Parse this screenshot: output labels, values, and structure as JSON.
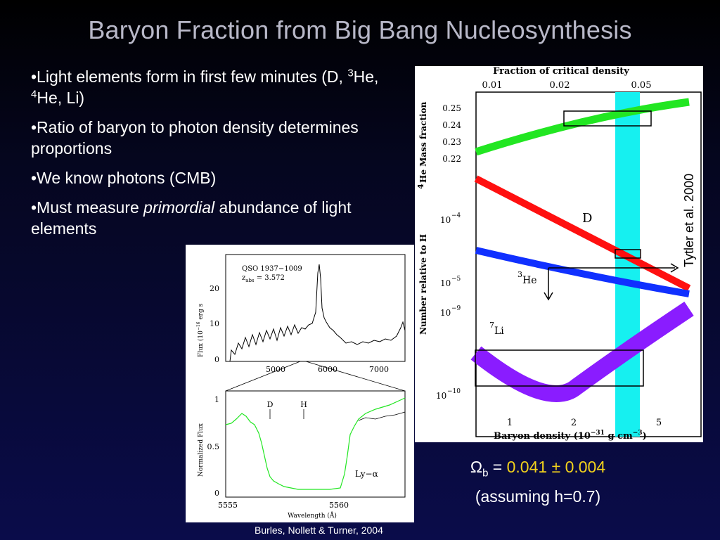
{
  "slide": {
    "title": "Baryon Fraction from Big Bang Nucleosynthesis",
    "bullets": [
      {
        "pre": "•Light elements form in first few minutes (D, ",
        "sup1": "3",
        "mid1": "He, ",
        "sup2": "4",
        "post": "He, Li)"
      },
      {
        "text": "•Ratio of baryon to photon density determines proportions"
      },
      {
        "text": "•We know photons (CMB)"
      },
      {
        "pre": "•Must measure ",
        "em": "primordial",
        "post": " abundance of light elements"
      }
    ],
    "omega": {
      "symbol": "Ω",
      "sub": "b",
      "eq": " = ",
      "value": "0.041 ± 0.004",
      "note": "(assuming h=0.7)"
    },
    "caption_right": "Tytler et al. 2000",
    "caption_left": "Burles, Nollett & Turner, 2004"
  },
  "colors": {
    "helium": "#22e622",
    "deuterium": "#ff1010",
    "he3": "#1030ff",
    "li7": "#8a1cff",
    "band": "#16f0f0"
  },
  "right_plot": {
    "top_axis_title": "Fraction of critical density",
    "top_ticks": [
      "0.01",
      "0.02",
      "0.05"
    ],
    "he_label": "He Mass fraction",
    "he_sup": "4",
    "he_ticks": [
      "0.25",
      "0.24",
      "0.23",
      "0.22"
    ],
    "y_label": "Number relative to H",
    "y_ticks": [
      "10",
      "10",
      "10",
      "10"
    ],
    "y_tick_exps": [
      "−4",
      "−5",
      "−9",
      "−10"
    ],
    "x_ticks": [
      "1",
      "2",
      "5"
    ],
    "x_title": "Baryon density (10",
    "x_title_exp": "−31",
    "x_title_end": " g cm",
    "x_title_exp2": "−3",
    "x_title_close": ")",
    "labels": {
      "d": "D",
      "he3_sup": "3",
      "he3": "He",
      "li7_sup": "7",
      "li7": "Li"
    }
  },
  "left_plot": {
    "object": "QSO 1937−1009",
    "zabs_label": "z",
    "zabs_sub": "abs",
    "zabs_value": " = 3.572",
    "top_y_ticks": [
      "20",
      "10",
      "0"
    ],
    "top_x_ticks": [
      "5000",
      "6000",
      "7000"
    ],
    "top_y_title": "Flux (10",
    "top_y_exp": "−16",
    "top_y_rest": " erg s",
    "bottom_y_ticks": [
      "1",
      "0.5",
      "0"
    ],
    "bottom_x_ticks": [
      "5555",
      "5560"
    ],
    "bottom_y_title": "Normalized Flux",
    "bottom_x_title": "Wavelength (Å)",
    "d_label": "D",
    "h_label": "H",
    "lya": "Ly−α"
  }
}
